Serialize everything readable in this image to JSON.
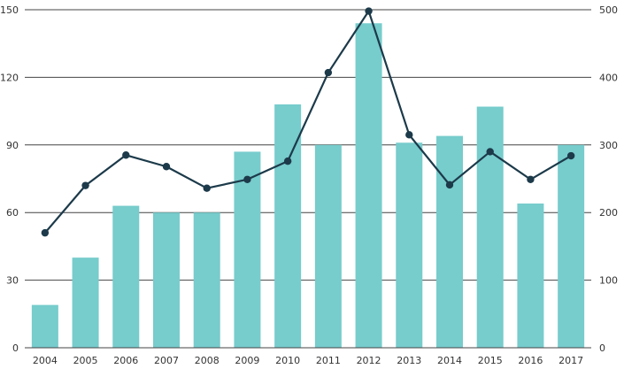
{
  "chart_data": {
    "type": "bar",
    "title": "",
    "xlabel": "",
    "ylabel": "",
    "y2label": "",
    "categories": [
      "2004",
      "2005",
      "2006",
      "2007",
      "2008",
      "2009",
      "2010",
      "2011",
      "2012",
      "2013",
      "2014",
      "2015",
      "2016",
      "2017"
    ],
    "series": [
      {
        "name": "bars",
        "kind": "bar",
        "axis": "left",
        "values": [
          19,
          40,
          63,
          60,
          60,
          87,
          108,
          90,
          144,
          91,
          94,
          107,
          64,
          90
        ]
      },
      {
        "name": "line",
        "kind": "line",
        "axis": "right",
        "values": [
          170,
          240,
          285,
          268,
          236,
          249,
          276,
          407,
          498,
          315,
          241,
          290,
          249,
          284
        ]
      }
    ],
    "ylim": [
      0,
      150
    ],
    "yticks": [
      "0",
      "30",
      "60",
      "90",
      "120",
      "150"
    ],
    "y2lim": [
      0,
      500
    ],
    "y2ticks": [
      "0",
      "100",
      "200",
      "300",
      "400",
      "500"
    ],
    "grid": true,
    "colors": {
      "bar": "#77cccc",
      "line": "#1c3a4a",
      "grid": "#444444",
      "text": "#333333"
    }
  }
}
